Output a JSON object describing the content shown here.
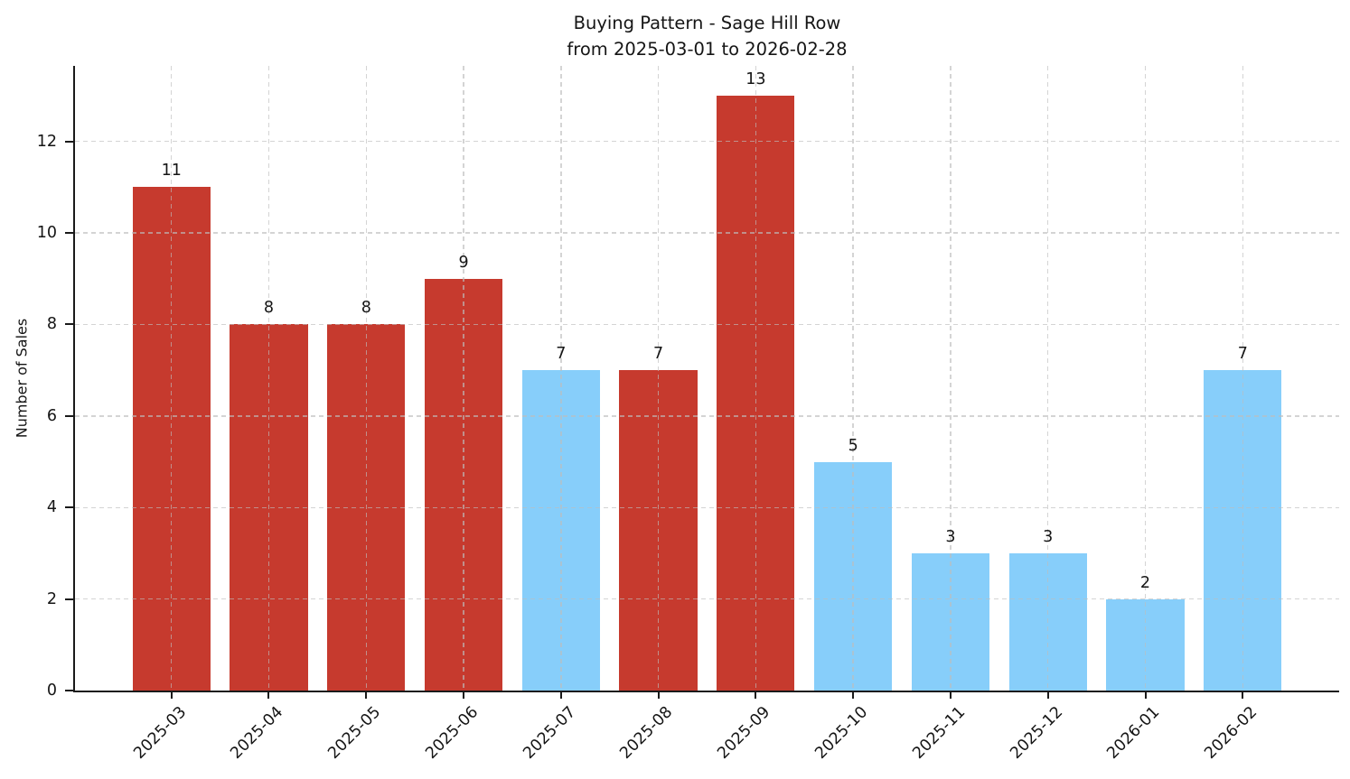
{
  "title": {
    "line1": "Buying Pattern - Sage Hill Row",
    "line2": "from 2025-03-01 to 2026-02-28"
  },
  "chart_data": {
    "type": "bar",
    "title": "Buying Pattern - Sage Hill Row\nfrom 2025-03-01 to 2026-02-28",
    "xlabel": "",
    "ylabel": "Number of Sales",
    "categories": [
      "2025-03",
      "2025-04",
      "2025-05",
      "2025-06",
      "2025-07",
      "2025-08",
      "2025-09",
      "2025-10",
      "2025-11",
      "2025-12",
      "2026-01",
      "2026-02"
    ],
    "values": [
      11,
      8,
      8,
      9,
      7,
      7,
      13,
      5,
      3,
      3,
      2,
      7
    ],
    "bar_value_labels": [
      "11",
      "8",
      "8",
      "9",
      "7",
      "7",
      "13",
      "5",
      "3",
      "3",
      "2",
      "7"
    ],
    "bar_colors": [
      "red",
      "red",
      "red",
      "red",
      "blue",
      "red",
      "red",
      "blue",
      "blue",
      "blue",
      "blue",
      "blue"
    ],
    "colors": {
      "red": "#c63a2e",
      "blue": "#87cefa"
    },
    "yticks": [
      0,
      2,
      4,
      6,
      8,
      10,
      12
    ],
    "ylim": [
      0,
      13.65
    ],
    "xlim": [
      -0.99,
      11.99
    ],
    "bar_width_units": 0.8,
    "grid": "dashed-both-axes-above-bars",
    "legend": "none"
  }
}
